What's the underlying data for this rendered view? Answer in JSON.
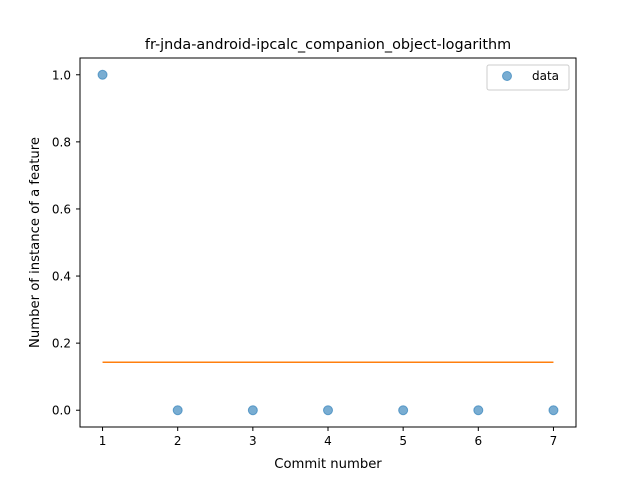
{
  "chart_data": {
    "type": "scatter",
    "title": "fr-jnda-android-ipcalc_companion_object-logarithm",
    "xlabel": "Commit number",
    "ylabel": "Number of instance of a feature",
    "xlim": [
      0.7,
      7.3
    ],
    "ylim": [
      -0.05,
      1.05
    ],
    "xticks": [
      1,
      2,
      3,
      4,
      5,
      6,
      7
    ],
    "yticks": [
      "0.0",
      "0.2",
      "0.4",
      "0.6",
      "0.8",
      "1.0"
    ],
    "series": [
      {
        "name": "data",
        "kind": "scatter",
        "color": "#1f77b4",
        "x": [
          1,
          2,
          3,
          4,
          5,
          6,
          7
        ],
        "y": [
          1.0,
          0.0,
          0.0,
          0.0,
          0.0,
          0.0,
          0.0
        ]
      },
      {
        "kind": "line",
        "color": "#ff7f0e",
        "x": [
          1,
          7
        ],
        "y": [
          0.143,
          0.143
        ]
      }
    ],
    "legend": {
      "position": "top-right",
      "entries": [
        "data"
      ]
    },
    "grid": false
  }
}
